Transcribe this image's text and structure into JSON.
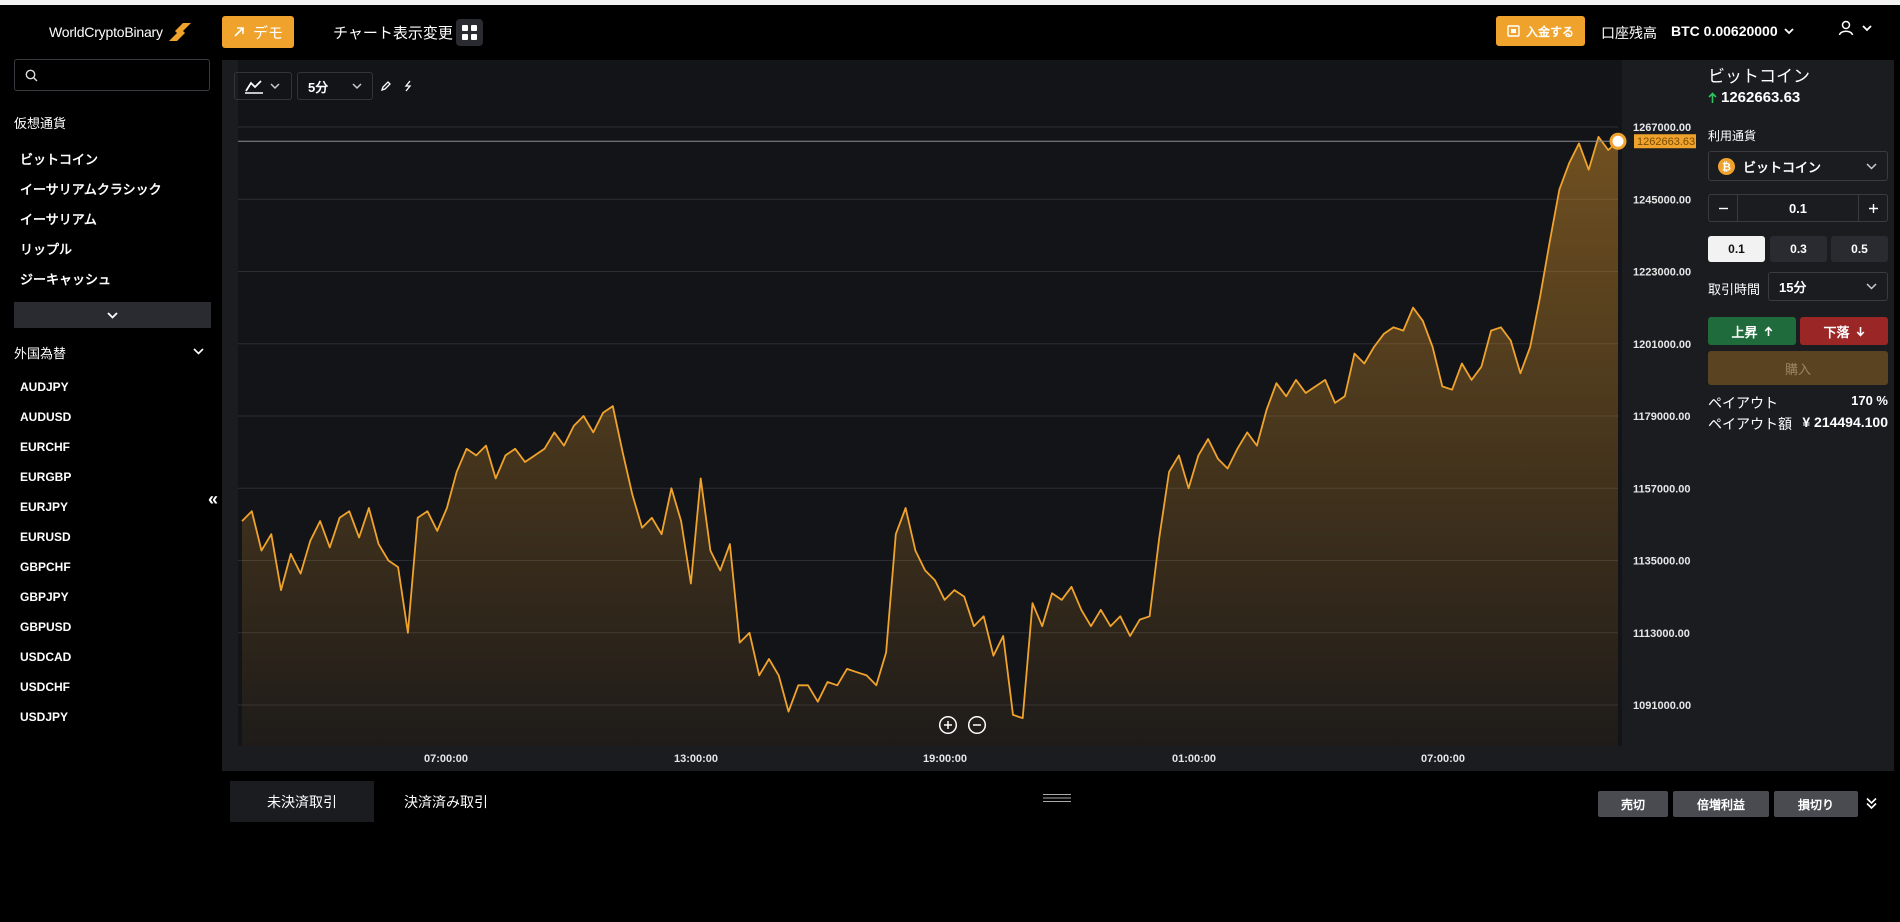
{
  "header": {
    "logo_text": "WorldCryptoBinary",
    "demo_label": "デモ",
    "chart_view_label": "チャート表示変更",
    "deposit_label": "入金する",
    "balance_label": "口座残高",
    "balance_value": "BTC 0.00620000"
  },
  "sidebar": {
    "search_placeholder": "",
    "crypto_title": "仮想通貨",
    "crypto_items": [
      "ビットコイン",
      "イーサリアムクラシック",
      "イーサリアム",
      "リップル",
      "ジーキャッシュ"
    ],
    "fx_title": "外国為替",
    "fx_items": [
      "AUDJPY",
      "AUDUSD",
      "EURCHF",
      "EURGBP",
      "EURJPY",
      "EURUSD",
      "GBPCHF",
      "GBPJPY",
      "GBPUSD",
      "USDCAD",
      "USDCHF",
      "USDJPY"
    ]
  },
  "toolbar": {
    "interval": "5分"
  },
  "chart_data": {
    "type": "area",
    "x_ticks": [
      "07:00:00",
      "13:00:00",
      "19:00:00",
      "01:00:00",
      "07:00:00"
    ],
    "y_ticks": [
      1267000,
      1245000,
      1223000,
      1201000,
      1179000,
      1157000,
      1135000,
      1113000,
      1091000
    ],
    "y_tick_labels": [
      "1267000.00",
      "1245000.00",
      "1223000.00",
      "1201000.00",
      "1179000.00",
      "1157000.00",
      "1135000.00",
      "1113000.00",
      "1091000.00"
    ],
    "current_price_label": "1262663.63",
    "current_price": 1262663.63,
    "series": [
      {
        "color": "#f0a32c",
        "values": [
          1147000,
          1150000,
          1138000,
          1143000,
          1126000,
          1137000,
          1131000,
          1141000,
          1147000,
          1139000,
          1148000,
          1150000,
          1142000,
          1151000,
          1140000,
          1135000,
          1133000,
          1113000,
          1148000,
          1150000,
          1144000,
          1151000,
          1162000,
          1169000,
          1167000,
          1170000,
          1160000,
          1167000,
          1169000,
          1165000,
          1167000,
          1169000,
          1174000,
          1170000,
          1176000,
          1179000,
          1174000,
          1180000,
          1182000,
          1168000,
          1155000,
          1145000,
          1148000,
          1143000,
          1157000,
          1147000,
          1128000,
          1160000,
          1138000,
          1132000,
          1140000,
          1110000,
          1113000,
          1100000,
          1105000,
          1100000,
          1089000,
          1097000,
          1097000,
          1092000,
          1098000,
          1097000,
          1102000,
          1101000,
          1100000,
          1097000,
          1107000,
          1143000,
          1151000,
          1138000,
          1132000,
          1129000,
          1123000,
          1126000,
          1124000,
          1115000,
          1118000,
          1106000,
          1112000,
          1088000,
          1087000,
          1122000,
          1115000,
          1125000,
          1123000,
          1127000,
          1120000,
          1115000,
          1120000,
          1115000,
          1118000,
          1112000,
          1117000,
          1118000,
          1142000,
          1162000,
          1167000,
          1157000,
          1167000,
          1172000,
          1166000,
          1163000,
          1169000,
          1174000,
          1170000,
          1181000,
          1189000,
          1185000,
          1190000,
          1186000,
          1188000,
          1190000,
          1183000,
          1185000,
          1198000,
          1195000,
          1200000,
          1204000,
          1206000,
          1205000,
          1212000,
          1208000,
          1200000,
          1188000,
          1187000,
          1195000,
          1190000,
          1194000,
          1205000,
          1206000,
          1202000,
          1192000,
          1200000,
          1215000,
          1232000,
          1248000,
          1256000,
          1262000,
          1254000,
          1264000,
          1260000,
          1262663.63
        ]
      }
    ]
  },
  "zoom": {
    "in_label": "+",
    "out_label": "−"
  },
  "trade_panel": {
    "asset_name": "ビットコイン",
    "asset_price": "1262663.63",
    "currency_label": "利用通貨",
    "currency_value": "ビットコイン",
    "amount": "0.1",
    "quick_amounts": [
      "0.1",
      "0.3",
      "0.5"
    ],
    "duration_label": "取引時間",
    "duration_value": "15分",
    "up_label": "上昇",
    "down_label": "下落",
    "buy_label": "購入",
    "payout_label": "ペイアウト",
    "payout_value": "170 %",
    "payout_amount_label": "ペイアウト額",
    "payout_amount_value": "¥ 214494.100"
  },
  "bottom": {
    "tabs": [
      "未決済取引",
      "決済済み取引"
    ],
    "actions": [
      "売切",
      "倍増利益",
      "損切り"
    ]
  }
}
